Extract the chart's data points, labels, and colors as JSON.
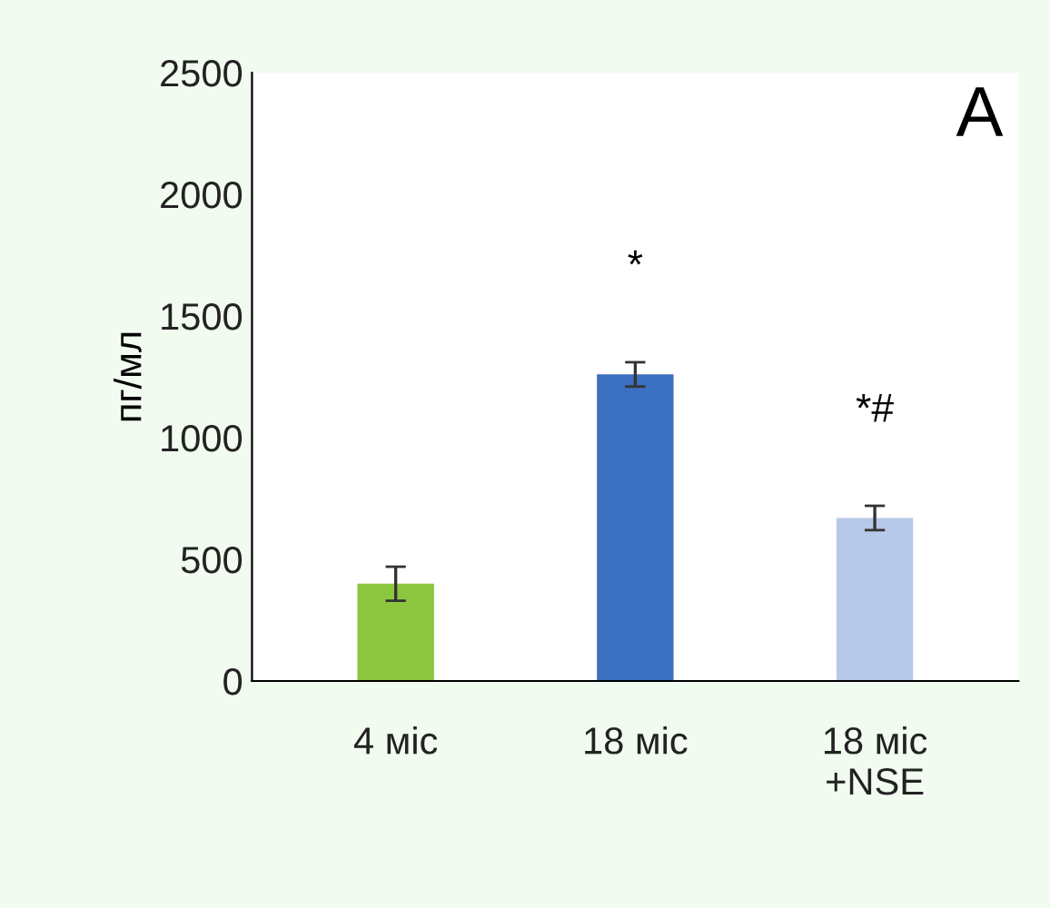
{
  "chart_data": {
    "type": "bar",
    "ylabel": "пг/мл",
    "categories": [
      "4 міс",
      "18 міс",
      "18 міс\n+NSE"
    ],
    "values": [
      400,
      1260,
      670
    ],
    "errors": [
      70,
      50,
      50
    ],
    "colors": [
      "#8cc63e",
      "#3b6fc0",
      "#b7c9e8"
    ],
    "ylim": [
      0,
      2500
    ],
    "yticks": [
      0,
      500,
      1000,
      1500,
      2000,
      2500
    ],
    "grid": false,
    "legend": false,
    "annotations": [
      "*",
      "*#",
      "A"
    ]
  }
}
